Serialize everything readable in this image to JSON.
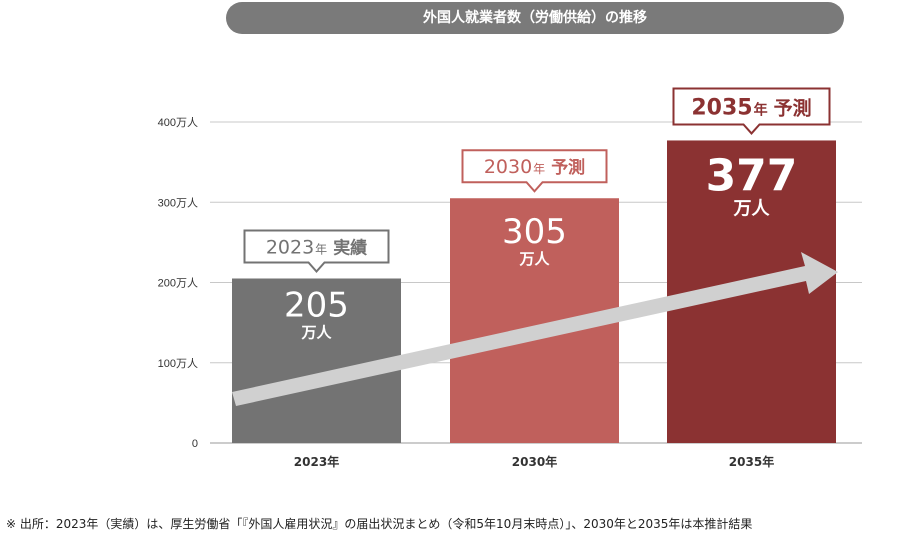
{
  "title": "外国人就業者数（労働供給）の推移",
  "footnote": "※ 出所：2023年（実績）は、厚生労働省「『外国人雇用状況』の届出状況まとめ（令和5年10月末時点）」、2030年と2035年は本推計結果",
  "chart_data": {
    "type": "bar",
    "categories": [
      "2023年",
      "2030年",
      "2035年"
    ],
    "values": [
      205,
      305,
      377
    ],
    "value_unit": "万人",
    "yticks": [
      "0",
      "100万人",
      "200万人",
      "300万人",
      "400万人"
    ],
    "ylim": [
      0,
      400
    ],
    "grid": true,
    "bar_colors": [
      "#737373",
      "#c0605c",
      "#8b3232"
    ],
    "callouts": [
      {
        "year": "2023",
        "suffix": "年",
        "label": "実績",
        "color": "#737373"
      },
      {
        "year": "2030",
        "suffix": "年",
        "label": "予測",
        "color": "#c0605c"
      },
      {
        "year": "2035",
        "suffix": "年",
        "label": "予測",
        "color": "#8b3232"
      }
    ],
    "trend_arrow": true
  }
}
